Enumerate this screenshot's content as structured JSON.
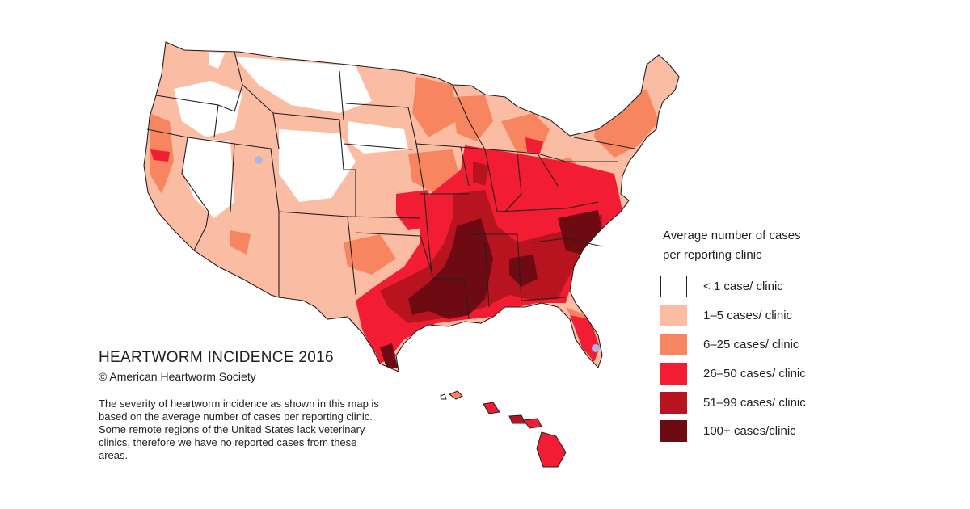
{
  "title": "HEARTWORM INCIDENCE 2016",
  "copyright": "© American Heartworm Society",
  "description": "The severity of heartworm incidence as shown in this map is based on the average number of cases per reporting clinic.  Some remote regions of the United States lack veterinary clinics, therefore we have no reported cases from these areas.",
  "legend": {
    "title_line1": "Average number of cases",
    "title_line2": "per reporting clinic",
    "items": [
      {
        "label": "< 1 case/ clinic",
        "color": "#ffffff"
      },
      {
        "label": "1–5 cases/ clinic",
        "color": "#fbbca4"
      },
      {
        "label": "6–25  cases/ clinic",
        "color": "#f7855f"
      },
      {
        "label": "26–50  cases/ clinic",
        "color": "#f21c33"
      },
      {
        "label": "51–99 cases/ clinic",
        "color": "#b8141f"
      },
      {
        "label": "100+ cases/clinic",
        "color": "#6e0a12"
      }
    ]
  },
  "colors": {
    "border": "#231f20",
    "no_data": "#a9b6e8"
  }
}
